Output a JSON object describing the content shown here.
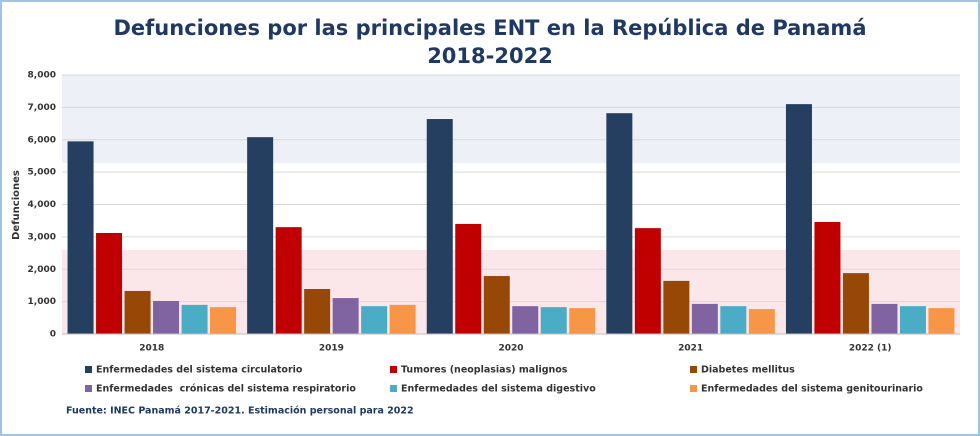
{
  "chart_data": {
    "type": "bar",
    "title": "Defunciones por las principales ENT en la República de Panamá",
    "subtitle": "2018-2022",
    "y_label": "Defunciones",
    "source": "Fuente: INEC Panamá 2017-2021. Estimación personal para 2022",
    "categories": [
      "2018",
      "2019",
      "2020",
      "2021",
      "2022 (1)"
    ],
    "series": [
      {
        "name": "Enfermedades del sistema circulatorio",
        "color": "#243f60",
        "values": [
          5950,
          6080,
          6640,
          6820,
          7100
        ]
      },
      {
        "name": "Tumores (neoplasias) malignos",
        "color": "#c00000",
        "values": [
          3120,
          3300,
          3400,
          3270,
          3460
        ]
      },
      {
        "name": "Diabetes mellitus",
        "color": "#974706",
        "values": [
          1330,
          1390,
          1790,
          1640,
          1880
        ]
      },
      {
        "name": "Enfermedades  crónicas del sistema respiratorio",
        "color": "#8064a2",
        "values": [
          1020,
          1110,
          860,
          930,
          930
        ]
      },
      {
        "name": "Enfermedades del sistema digestivo",
        "color": "#4bacc6",
        "values": [
          900,
          860,
          830,
          860,
          860
        ]
      },
      {
        "name": "Enfermedades del sistema genitourinario",
        "color": "#f79646",
        "values": [
          830,
          900,
          800,
          770,
          800
        ]
      }
    ],
    "ylim": [
      0,
      8000
    ],
    "yticks": [
      0,
      {
        "value": 1000,
        "label": "1,000"
      },
      {
        "value": 2000,
        "label": "2,000"
      },
      {
        "value": 3000,
        "label": "3,000"
      },
      {
        "value": 4000,
        "label": "4,000"
      },
      {
        "value": 5000,
        "label": "5,000"
      },
      {
        "value": 6000,
        "label": "6,000"
      },
      {
        "value": 7000,
        "label": "7,000"
      },
      {
        "value": 8000,
        "label": "8,000"
      }
    ],
    "grid": true
  }
}
